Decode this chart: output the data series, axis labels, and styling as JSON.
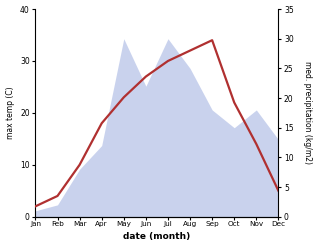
{
  "months": [
    "Jan",
    "Feb",
    "Mar",
    "Apr",
    "May",
    "Jun",
    "Jul",
    "Aug",
    "Sep",
    "Oct",
    "Nov",
    "Dec"
  ],
  "temp": [
    2,
    4,
    10,
    18,
    23,
    27,
    30,
    32,
    34,
    22,
    14,
    5
  ],
  "precip": [
    1,
    2,
    8,
    12,
    30,
    22,
    30,
    25,
    18,
    15,
    18,
    13
  ],
  "temp_color": "#b03030",
  "precip_color_fill": "#b8c4e8",
  "temp_ylim": [
    0,
    40
  ],
  "precip_ylim": [
    0,
    35
  ],
  "temp_yticks": [
    0,
    10,
    20,
    30,
    40
  ],
  "precip_yticks": [
    0,
    5,
    10,
    15,
    20,
    25,
    30,
    35
  ],
  "ylabel_left": "max temp (C)",
  "ylabel_right": "med. precipitation (kg/m2)",
  "xlabel": "date (month)",
  "background_color": "#ffffff"
}
